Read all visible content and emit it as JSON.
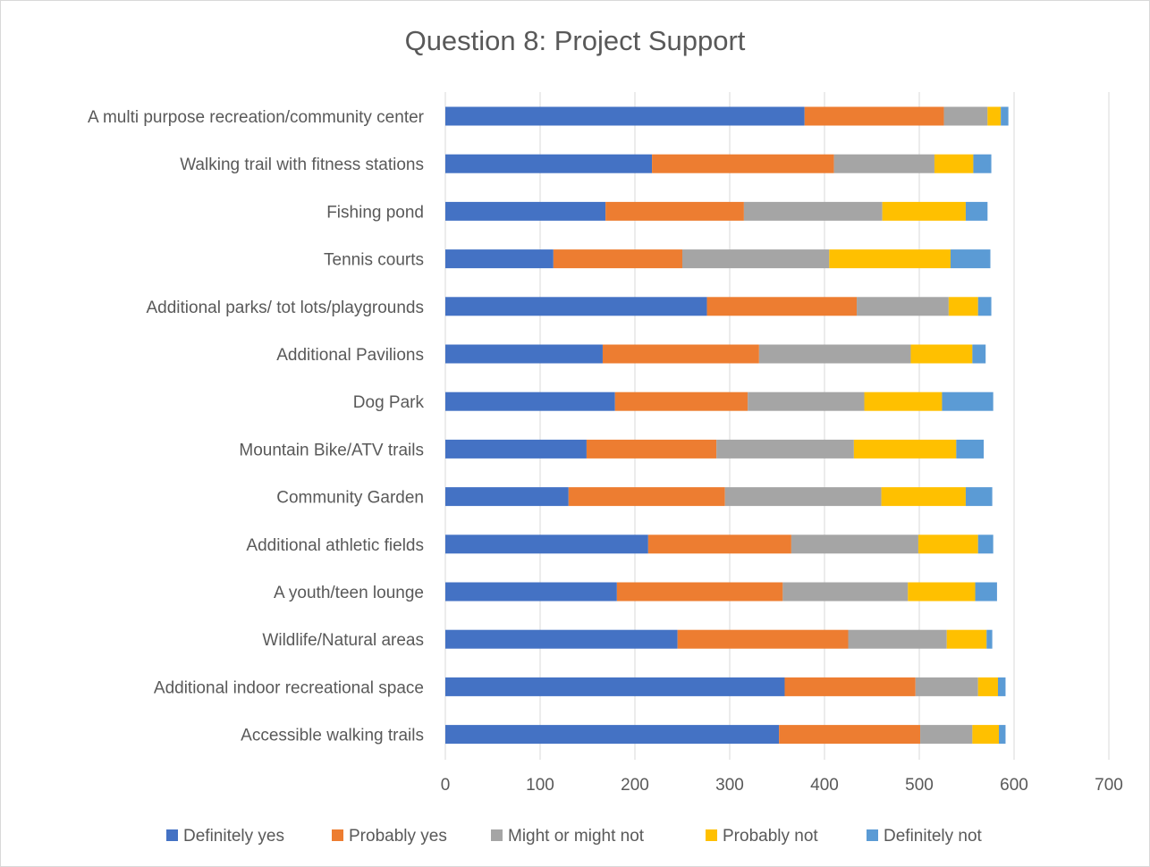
{
  "chart_data": {
    "type": "bar",
    "orientation": "horizontal",
    "stacked": true,
    "title": "Question 8: Project Support",
    "xlabel": "",
    "ylabel": "",
    "xlim": [
      0,
      700
    ],
    "xticks": [
      0,
      100,
      200,
      300,
      400,
      500,
      600,
      700
    ],
    "grid": true,
    "legend_position": "bottom",
    "categories": [
      "A multi purpose recreation/community center",
      "Walking trail with fitness stations",
      "Fishing pond",
      "Tennis courts",
      "Additional parks/ tot lots/playgrounds",
      "Additional Pavilions",
      "Dog Park",
      "Mountain Bike/ATV trails",
      "Community Garden",
      "Additional athletic fields",
      "A youth/teen lounge",
      "Wildlife/Natural areas",
      "Additional indoor recreational space",
      "Accessible walking trails"
    ],
    "series": [
      {
        "name": "Definitely yes",
        "color": "#4472c4",
        "values": [
          379,
          218,
          169,
          114,
          276,
          166,
          179,
          149,
          130,
          214,
          181,
          245,
          358,
          352
        ]
      },
      {
        "name": "Probably yes",
        "color": "#ed7d31",
        "values": [
          147,
          192,
          146,
          136,
          158,
          165,
          140,
          137,
          165,
          151,
          175,
          180,
          138,
          149
        ]
      },
      {
        "name": "Might or might not",
        "color": "#a5a5a5",
        "values": [
          46,
          106,
          146,
          155,
          97,
          160,
          123,
          145,
          165,
          134,
          132,
          104,
          66,
          55
        ]
      },
      {
        "name": "Probably not",
        "color": "#ffc000",
        "values": [
          14,
          41,
          88,
          128,
          31,
          65,
          82,
          108,
          89,
          63,
          71,
          42,
          21,
          28
        ]
      },
      {
        "name": "Definitely not",
        "color": "#5b9bd5",
        "values": [
          8,
          19,
          23,
          42,
          14,
          14,
          54,
          29,
          28,
          16,
          23,
          6,
          8,
          7
        ]
      }
    ]
  }
}
